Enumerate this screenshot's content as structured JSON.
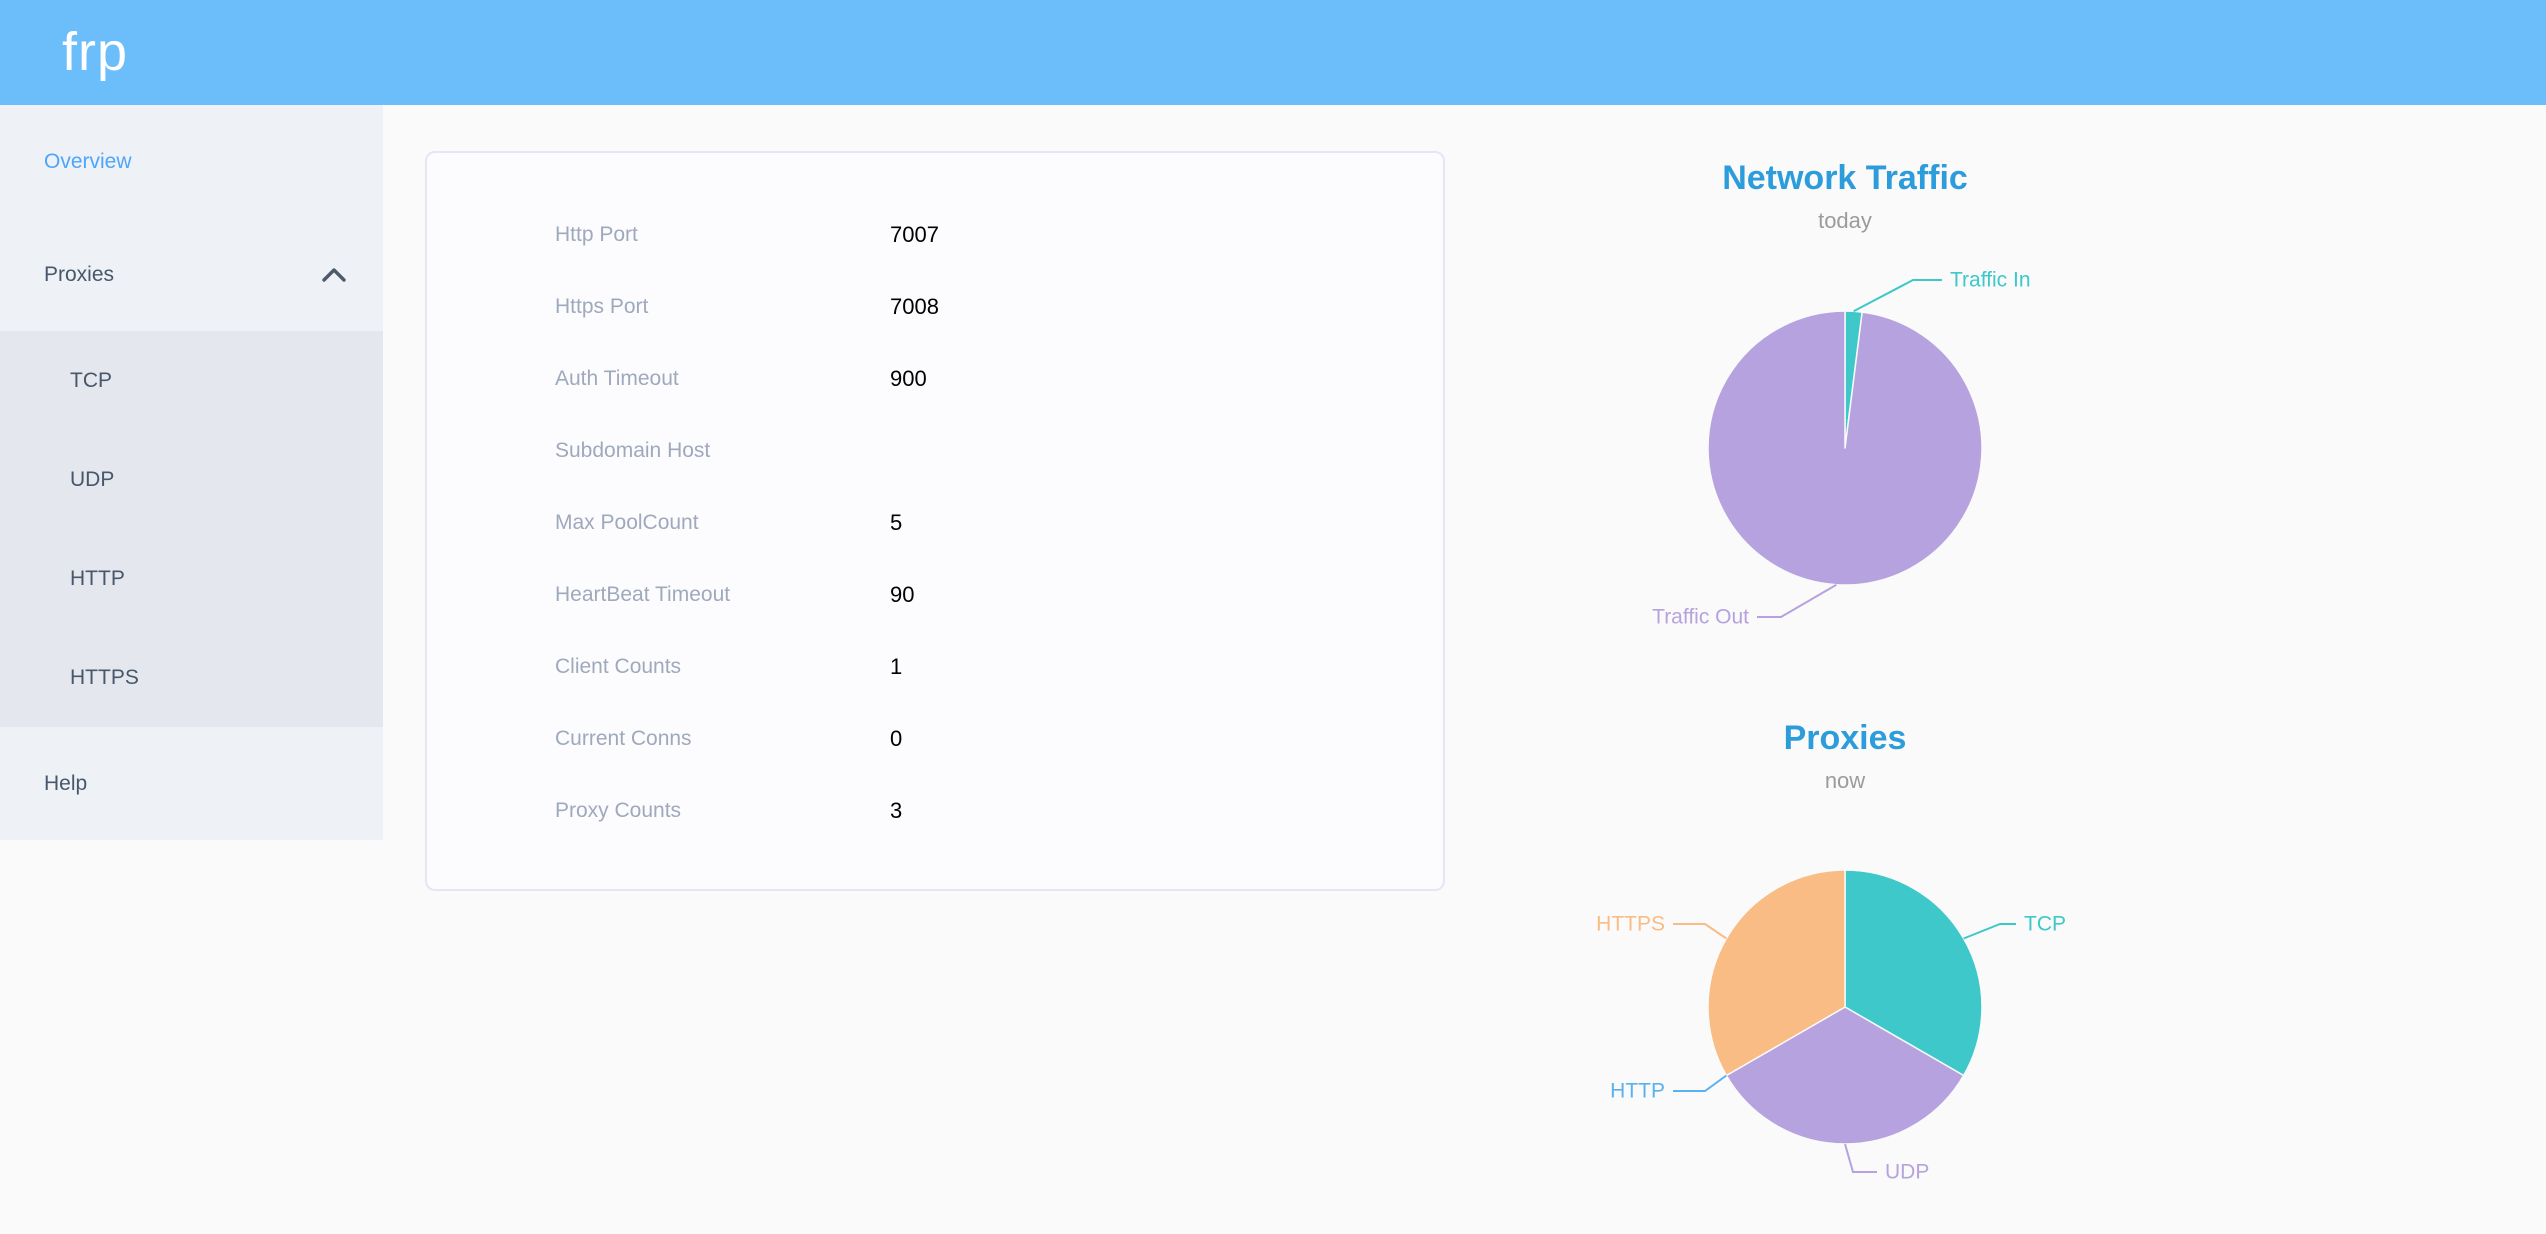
{
  "header": {
    "logo": "frp"
  },
  "sidebar": {
    "items": [
      {
        "label": "Overview",
        "active": true
      },
      {
        "label": "Proxies",
        "active": false,
        "expanded": true,
        "children": [
          {
            "label": "TCP"
          },
          {
            "label": "UDP"
          },
          {
            "label": "HTTP"
          },
          {
            "label": "HTTPS"
          }
        ]
      },
      {
        "label": "Help",
        "active": false
      }
    ]
  },
  "overview": {
    "rows": [
      {
        "label": "Http Port",
        "value": "7007"
      },
      {
        "label": "Https Port",
        "value": "7008"
      },
      {
        "label": "Auth Timeout",
        "value": "900"
      },
      {
        "label": "Subdomain Host",
        "value": ""
      },
      {
        "label": "Max PoolCount",
        "value": "5"
      },
      {
        "label": "HeartBeat Timeout",
        "value": "90"
      },
      {
        "label": "Client Counts",
        "value": "1"
      },
      {
        "label": "Current Conns",
        "value": "0"
      },
      {
        "label": "Proxy Counts",
        "value": "3"
      }
    ]
  },
  "chart_data": [
    {
      "type": "pie",
      "title": "Network Traffic",
      "subtitle": "today",
      "legend_position": "none",
      "series": [
        {
          "name": "Traffic In",
          "value": 2,
          "color": "#3ec8ca"
        },
        {
          "name": "Traffic Out",
          "value": 98,
          "color": "#b6a2de"
        }
      ]
    },
    {
      "type": "pie",
      "title": "Proxies",
      "subtitle": "now",
      "legend_position": "none",
      "series": [
        {
          "name": "TCP",
          "value": 1,
          "color": "#3ec8ca"
        },
        {
          "name": "UDP",
          "value": 1,
          "color": "#b6a2de"
        },
        {
          "name": "HTTP",
          "value": 0,
          "color": "#5ab1ef"
        },
        {
          "name": "HTTPS",
          "value": 1,
          "color": "#f9bc85"
        }
      ]
    }
  ],
  "colors": {
    "header_bg": "#6cbefb",
    "sidebar_bg": "#eef1f6",
    "submenu_bg": "#e4e7ee",
    "sidebar_text": "#48576a",
    "sidebar_active": "#4da6fa",
    "page_bg": "#fafafa",
    "card_border": "#e4e6f4",
    "config_label": "#9fa9bc",
    "config_value": "#000000",
    "chart_title": "#2d9cdb",
    "chart_subtitle": "#9b9b9b"
  }
}
